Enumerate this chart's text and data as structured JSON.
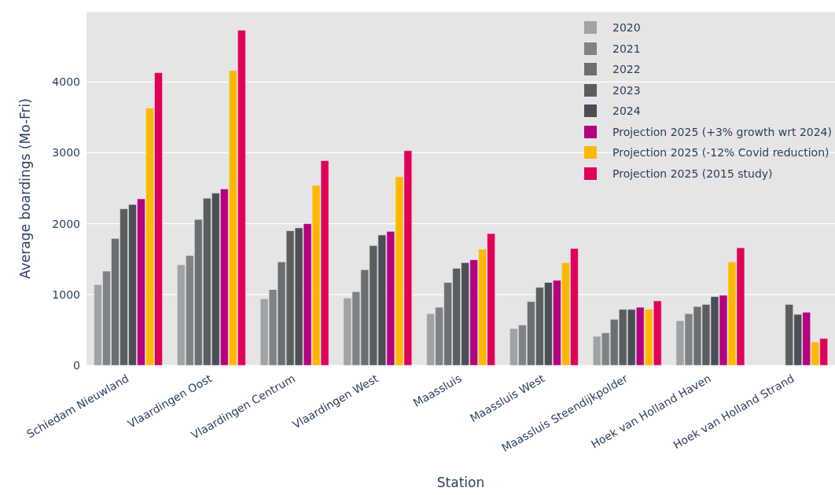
{
  "chart_data": {
    "type": "bar",
    "xlabel": "Station",
    "ylabel": "Average boardings (Mo-Fri)",
    "categories": [
      "Schiedam Nieuwland",
      "Vlaardingen Oost",
      "Vlaardingen Centrum",
      "Vlaardingen West",
      "Maassluis",
      "Maassluis West",
      "Maassluis Steendijkpolder",
      "Hoek van Holland Haven",
      "Hoek van Holland Strand"
    ],
    "series": [
      {
        "name": "2020",
        "color": "#a0a3a6",
        "values": [
          1140,
          1420,
          940,
          950,
          730,
          520,
          410,
          630,
          null
        ]
      },
      {
        "name": "2021",
        "color": "#808385",
        "values": [
          1330,
          1550,
          1070,
          1040,
          820,
          570,
          460,
          730,
          null
        ]
      },
      {
        "name": "2022",
        "color": "#6c6f71",
        "values": [
          1790,
          2060,
          1460,
          1350,
          1170,
          900,
          650,
          830,
          null
        ]
      },
      {
        "name": "2023",
        "color": "#5b5e61",
        "values": [
          2210,
          2360,
          1900,
          1690,
          1370,
          1100,
          790,
          860,
          860
        ]
      },
      {
        "name": "2024",
        "color": "#4a4f56",
        "values": [
          2270,
          2430,
          1940,
          1840,
          1450,
          1170,
          790,
          970,
          720
        ]
      },
      {
        "name": "Projection 2025 (+3% growth wrt 2024)",
        "color": "#b5007f",
        "values": [
          2350,
          2490,
          2000,
          1890,
          1490,
          1200,
          820,
          990,
          750
        ]
      },
      {
        "name": "Projection 2025 (-12% Covid reduction)",
        "color": "#ffb800",
        "values": [
          3630,
          4160,
          2540,
          2660,
          1640,
          1450,
          790,
          1460,
          330
        ]
      },
      {
        "name": "Projection 2025 (2015 study)",
        "color": "#e0005a",
        "values": [
          4130,
          4730,
          2890,
          3030,
          1860,
          1650,
          910,
          1660,
          380
        ]
      }
    ],
    "ylim": [
      0,
      4990
    ],
    "yticks": [
      0,
      1000,
      2000,
      3000,
      4000
    ],
    "grid": "y",
    "legend": "top right"
  }
}
